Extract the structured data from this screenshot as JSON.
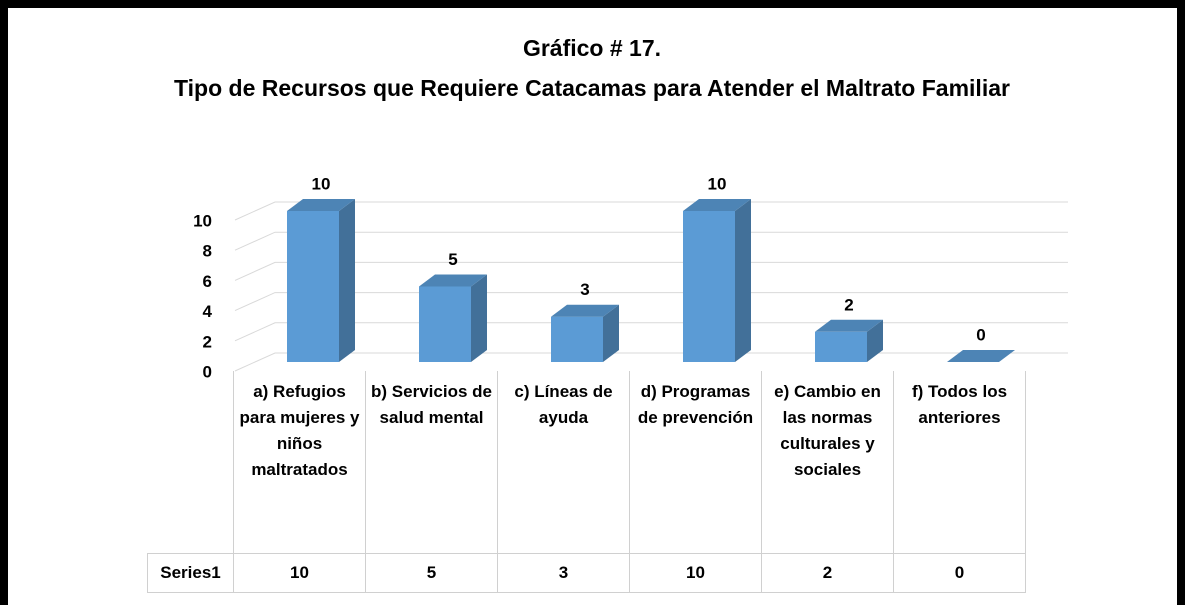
{
  "chart_data": {
    "type": "bar",
    "title": "Gráfico # 17.",
    "subtitle": "Tipo de Recursos que Requiere Catacamas para Atender el Maltrato Familiar",
    "categories": [
      "a) Refugios para mujeres y niños maltratados",
      "b) Servicios de salud mental",
      "c) Líneas de ayuda",
      "d) Programas de prevención",
      "e) Cambio en las normas culturales y sociales",
      "f) Todos los anteriores"
    ],
    "series": [
      {
        "name": "Series1",
        "color": "#5b9bd5",
        "values": [
          10,
          5,
          3,
          10,
          2,
          0
        ]
      }
    ],
    "ylim": [
      0,
      10
    ],
    "yticks": [
      0,
      2,
      4,
      6,
      8,
      10
    ],
    "grid": true
  }
}
